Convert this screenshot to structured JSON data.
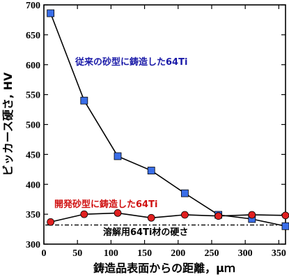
{
  "chart_data": {
    "type": "line",
    "xlabel": "鋳造品表面からの距離，μｍ",
    "ylabel": "ビッカース硬さ, HV",
    "xlim": [
      0,
      360
    ],
    "ylim": [
      300,
      700
    ],
    "xticks": [
      "0",
      "50",
      "100",
      "150",
      "200",
      "250",
      "300",
      "350"
    ],
    "yticks": [
      "300",
      "350",
      "400",
      "450",
      "500",
      "550",
      "600",
      "650",
      "700"
    ],
    "grid": false,
    "series": [
      {
        "name": "従来の砂型に鋳造した64Ti",
        "marker": "square",
        "color": "#3a6ee8",
        "x": [
          10,
          60,
          110,
          160,
          210,
          260,
          310,
          360
        ],
        "y": [
          686,
          540,
          447,
          423,
          385,
          349,
          342,
          330
        ]
      },
      {
        "name": "開発砂型に鋳造した64Ti",
        "marker": "circle",
        "color": "#e02020",
        "x": [
          10,
          60,
          110,
          160,
          210,
          260,
          310,
          360
        ],
        "y": [
          337,
          350,
          352,
          344,
          349,
          347,
          349,
          348
        ]
      }
    ],
    "reference_line": {
      "label": "溶解用64Ti材の硬さ",
      "y": 332
    }
  },
  "colors": {
    "blue_text": "#1a1aa8",
    "red_text": "#d01010"
  }
}
